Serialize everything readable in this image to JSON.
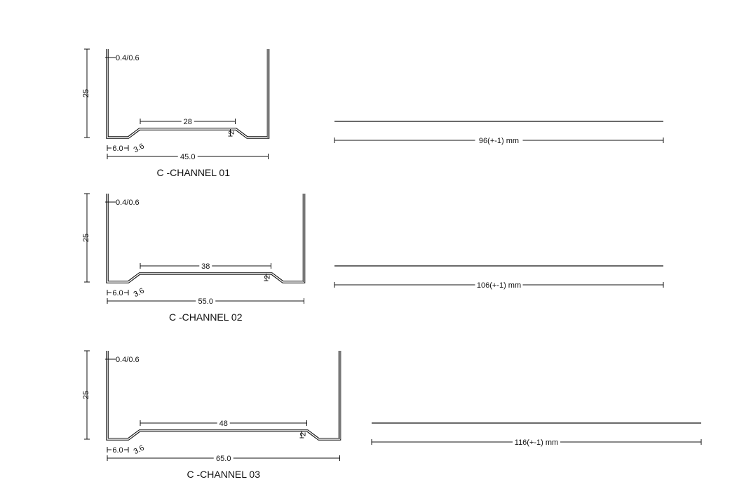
{
  "channels": [
    {
      "title": "C -CHANNEL 01",
      "height": "25",
      "thickness": "0.4/0.6",
      "inner_width": "28",
      "step": "2",
      "flange": "6.0",
      "slope": "3.6",
      "width": "45.0",
      "width_mm": 45,
      "length": "96(+-1) mm"
    },
    {
      "title": "C -CHANNEL 02",
      "height": "25",
      "thickness": "0.4/0.6",
      "inner_width": "38",
      "step": "2",
      "flange": "6.0",
      "slope": "3.6",
      "width": "55.0",
      "width_mm": 55,
      "length": "106(+-1) mm"
    },
    {
      "title": "C -CHANNEL 03",
      "height": "25",
      "thickness": "0.4/0.6",
      "inner_width": "48",
      "step": "2",
      "flange": "6.0",
      "slope": "3.6",
      "width": "65.0",
      "width_mm": 65,
      "length": "116(+-1) mm"
    }
  ],
  "colors": {
    "line": "#111111",
    "background": "#ffffff"
  }
}
